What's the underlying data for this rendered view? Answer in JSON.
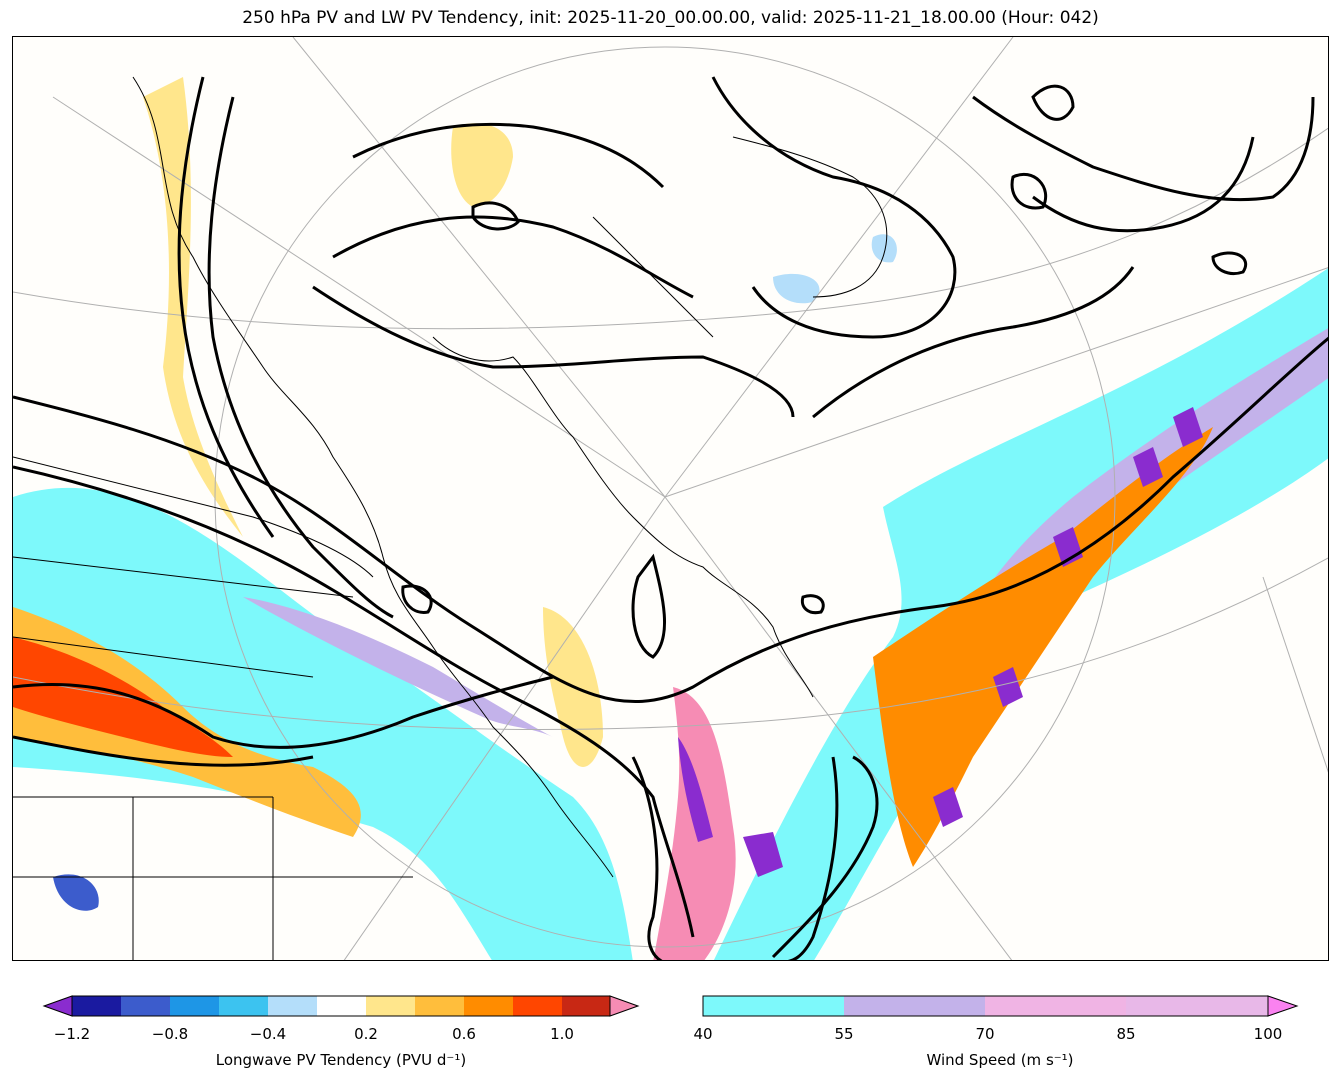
{
  "title": "250 hPa PV and LW PV Tendency, init: 2025-11-20_00.00.00, valid: 2025-11-21_18.00.00 (Hour: 042)",
  "colors": {
    "map_background": "#fffefb",
    "contour": "#000000",
    "wind_40_55": "#7df9fb",
    "wind_55_70": "#c3b2ea",
    "pv_neg_extreme": "#8a2ccf",
    "pv_pos_extreme": "#f68cb4"
  },
  "pv_colorbar": {
    "label": "Longwave PV Tendency (PVU d⁻¹)",
    "ticks": [
      "−1.2",
      "−0.8",
      "−0.4",
      "0.2",
      "0.6",
      "1.0"
    ],
    "colors": [
      "#1a1aa0",
      "#3c5ccc",
      "#1e96e6",
      "#3cc3f0",
      "#b4defa",
      "#ffffff",
      "#ffe68c",
      "#ffbe3c",
      "#ff8c00",
      "#ff4600",
      "#c82814"
    ]
  },
  "wind_colorbar": {
    "label": "Wind Speed (m s⁻¹)",
    "ticks": [
      "40",
      "55",
      "70",
      "85",
      "100"
    ],
    "colors": [
      "#7df9fb",
      "#c3b2ea",
      "#f0b4e4",
      "#e8b8e8",
      "#fa82f0"
    ]
  }
}
